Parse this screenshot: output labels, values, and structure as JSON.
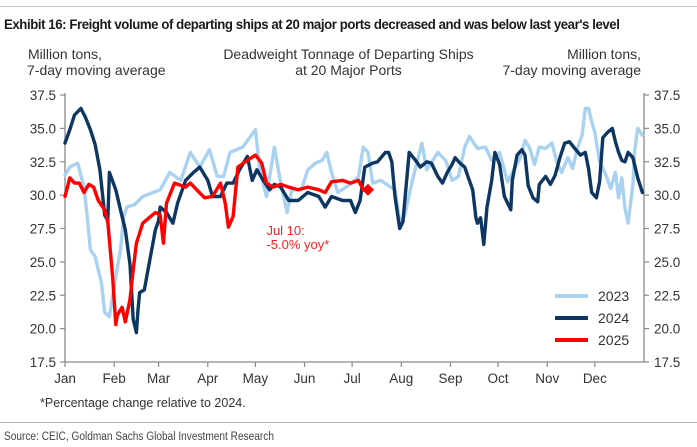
{
  "exhibit_title": "Exhibit 16: Freight volume of departing ships at 20 major ports decreased and was below last year's level",
  "footnote": "*Percentage change relative to 2024.",
  "source": "Source: CEIC, Goldman Sachs Global Investment Research",
  "chart_data": {
    "type": "line",
    "title": [
      "Deadweight Tonnage of Departing Ships",
      "at 20 Major Ports"
    ],
    "ylabel_left": [
      "Million tons,",
      "7-day moving average"
    ],
    "ylabel_right": [
      "Million tons,",
      "7-day moving average"
    ],
    "xlabel": "",
    "x_unit": "day of year (0 = Jan 1)",
    "x_range": [
      0,
      365
    ],
    "x_ticks": [
      {
        "label": "Jan",
        "day": 0
      },
      {
        "label": "Feb",
        "day": 31
      },
      {
        "label": "Mar",
        "day": 59
      },
      {
        "label": "Apr",
        "day": 90
      },
      {
        "label": "May",
        "day": 120
      },
      {
        "label": "Jun",
        "day": 151
      },
      {
        "label": "Jul",
        "day": 181
      },
      {
        "label": "Aug",
        "day": 212
      },
      {
        "label": "Sep",
        "day": 243
      },
      {
        "label": "Oct",
        "day": 273
      },
      {
        "label": "Nov",
        "day": 304
      },
      {
        "label": "Dec",
        "day": 334
      }
    ],
    "ylim": [
      17.5,
      37.5
    ],
    "y_ticks": [
      "17.5",
      "20.0",
      "22.5",
      "25.0",
      "27.5",
      "30.0",
      "32.5",
      "35.0",
      "37.5"
    ],
    "grid": false,
    "legend_position": "bottom-right",
    "series": [
      {
        "name": "2023",
        "color": "#a9d2f0",
        "points": [
          [
            0,
            31.5
          ],
          [
            3,
            32.1
          ],
          [
            8,
            32.4
          ],
          [
            12,
            30.6
          ],
          [
            14,
            28.4
          ],
          [
            16,
            25.9
          ],
          [
            19,
            25.4
          ],
          [
            23,
            23.4
          ],
          [
            25,
            21.2
          ],
          [
            28,
            20.9
          ],
          [
            32,
            23.9
          ],
          [
            35,
            25.9
          ],
          [
            37,
            28.4
          ],
          [
            39,
            29.1
          ],
          [
            44,
            29.3
          ],
          [
            49,
            29.9
          ],
          [
            60,
            30.4
          ],
          [
            66,
            31.7
          ],
          [
            73,
            31.1
          ],
          [
            79,
            33.2
          ],
          [
            85,
            32.1
          ],
          [
            91,
            33.4
          ],
          [
            96,
            31.4
          ],
          [
            100,
            31.4
          ],
          [
            104,
            33.2
          ],
          [
            112,
            33.6
          ],
          [
            117,
            34.4
          ],
          [
            120,
            34.9
          ],
          [
            123,
            31.7
          ],
          [
            127,
            29.9
          ],
          [
            132,
            33.6
          ],
          [
            136,
            30.9
          ],
          [
            140,
            28.7
          ],
          [
            143,
            30.4
          ],
          [
            149,
            30.4
          ],
          [
            153,
            31.9
          ],
          [
            158,
            32.4
          ],
          [
            162,
            32.6
          ],
          [
            165,
            33.2
          ],
          [
            168,
            31.7
          ],
          [
            172,
            30.2
          ],
          [
            181,
            30.9
          ],
          [
            185,
            31.4
          ],
          [
            188,
            33.6
          ],
          [
            191,
            33.2
          ],
          [
            194,
            30.9
          ],
          [
            199,
            31.1
          ],
          [
            208,
            30.4
          ],
          [
            211,
            28.1
          ],
          [
            214,
            28.4
          ],
          [
            219,
            31.1
          ],
          [
            225,
            33.9
          ],
          [
            228,
            31.9
          ],
          [
            235,
            33.2
          ],
          [
            240,
            32.6
          ],
          [
            244,
            31.1
          ],
          [
            248,
            31.4
          ],
          [
            252,
            33.6
          ],
          [
            255,
            34.4
          ],
          [
            260,
            33.5
          ],
          [
            265,
            33.6
          ],
          [
            269,
            32.6
          ],
          [
            274,
            33.2
          ],
          [
            279,
            31.0
          ],
          [
            282,
            31.7
          ],
          [
            287,
            32.8
          ],
          [
            290,
            34.1
          ],
          [
            293,
            33.5
          ],
          [
            296,
            32.3
          ],
          [
            299,
            33.6
          ],
          [
            303,
            33.5
          ],
          [
            307,
            33.9
          ],
          [
            310,
            32.5
          ],
          [
            313,
            31.7
          ],
          [
            317,
            32.8
          ],
          [
            320,
            32.0
          ],
          [
            323,
            33.5
          ],
          [
            326,
            34.5
          ],
          [
            328,
            36.5
          ],
          [
            330,
            36.5
          ],
          [
            332,
            35.5
          ],
          [
            334,
            34.7
          ],
          [
            337,
            32.5
          ],
          [
            341,
            31.5
          ],
          [
            344,
            30.5
          ],
          [
            347,
            31.7
          ],
          [
            349,
            29.8
          ],
          [
            351,
            31.3
          ],
          [
            353,
            29.0
          ],
          [
            355,
            27.9
          ],
          [
            358,
            30.8
          ],
          [
            359,
            33.2
          ],
          [
            361,
            35.0
          ],
          [
            364,
            34.5
          ]
        ]
      },
      {
        "name": "2024",
        "color": "#0d3761",
        "points": [
          [
            0,
            33.9
          ],
          [
            3,
            34.9
          ],
          [
            6,
            36.0
          ],
          [
            10,
            36.5
          ],
          [
            13,
            35.8
          ],
          [
            16,
            34.9
          ],
          [
            19,
            33.8
          ],
          [
            22,
            31.9
          ],
          [
            25,
            28.5
          ],
          [
            27,
            28.1
          ],
          [
            28,
            31.7
          ],
          [
            32,
            30.4
          ],
          [
            35,
            28.9
          ],
          [
            38,
            27.4
          ],
          [
            41,
            24.8
          ],
          [
            43,
            20.7
          ],
          [
            45,
            19.7
          ],
          [
            46,
            21.4
          ],
          [
            47,
            22.7
          ],
          [
            50,
            22.9
          ],
          [
            54,
            25.5
          ],
          [
            57,
            27.4
          ],
          [
            59,
            28.1
          ],
          [
            60,
            29.1
          ],
          [
            64,
            28.7
          ],
          [
            68,
            27.9
          ],
          [
            71,
            29.4
          ],
          [
            76,
            31.1
          ],
          [
            81,
            31.7
          ],
          [
            85,
            32.1
          ],
          [
            90,
            31.1
          ],
          [
            93,
            29.9
          ],
          [
            98,
            29.9
          ],
          [
            102,
            30.9
          ],
          [
            106,
            30.9
          ],
          [
            110,
            31.9
          ],
          [
            115,
            32.9
          ],
          [
            118,
            31.1
          ],
          [
            121,
            31.9
          ],
          [
            125,
            31.1
          ],
          [
            129,
            30.4
          ],
          [
            132,
            30.8
          ],
          [
            136,
            30.6
          ],
          [
            141,
            29.6
          ],
          [
            147,
            29.6
          ],
          [
            153,
            30.2
          ],
          [
            160,
            29.9
          ],
          [
            164,
            29.1
          ],
          [
            168,
            29.9
          ],
          [
            175,
            29.6
          ],
          [
            180,
            29.6
          ],
          [
            183,
            28.7
          ],
          [
            186,
            29.6
          ],
          [
            189,
            32.1
          ],
          [
            194,
            32.4
          ],
          [
            197,
            32.5
          ],
          [
            202,
            33.2
          ],
          [
            204,
            33.2
          ],
          [
            206,
            32.5
          ],
          [
            208,
            29.9
          ],
          [
            211,
            27.5
          ],
          [
            213,
            28.0
          ],
          [
            216,
            31.9
          ],
          [
            217,
            33.2
          ],
          [
            221,
            32.6
          ],
          [
            224,
            32.1
          ],
          [
            228,
            32.5
          ],
          [
            231,
            32.4
          ],
          [
            235,
            31.4
          ],
          [
            238,
            30.9
          ],
          [
            241,
            31.7
          ],
          [
            244,
            32.3
          ],
          [
            246,
            32.8
          ],
          [
            249,
            32.4
          ],
          [
            252,
            32.1
          ],
          [
            254,
            31.4
          ],
          [
            257,
            30.4
          ],
          [
            259,
            28.3
          ],
          [
            260,
            27.9
          ],
          [
            262,
            28.3
          ],
          [
            264,
            26.3
          ],
          [
            266,
            29.1
          ],
          [
            269,
            31.1
          ],
          [
            271,
            33.2
          ],
          [
            274,
            32.3
          ],
          [
            277,
            29.9
          ],
          [
            281,
            28.9
          ],
          [
            282,
            31.1
          ],
          [
            285,
            33.0
          ],
          [
            288,
            33.4
          ],
          [
            290,
            33.0
          ],
          [
            292,
            30.7
          ],
          [
            295,
            29.8
          ],
          [
            298,
            29.5
          ],
          [
            299,
            30.8
          ],
          [
            303,
            31.4
          ],
          [
            306,
            30.8
          ],
          [
            309,
            31.5
          ],
          [
            312,
            32.8
          ],
          [
            315,
            33.9
          ],
          [
            318,
            34.0
          ],
          [
            322,
            33.4
          ],
          [
            325,
            33.0
          ],
          [
            328,
            33.2
          ],
          [
            330,
            32.0
          ],
          [
            332,
            30.2
          ],
          [
            335,
            29.8
          ],
          [
            337,
            31.0
          ],
          [
            339,
            34.3
          ],
          [
            342,
            34.7
          ],
          [
            345,
            35.0
          ],
          [
            347,
            34.0
          ],
          [
            349,
            33.2
          ],
          [
            351,
            32.6
          ],
          [
            353,
            32.5
          ],
          [
            355,
            33.2
          ],
          [
            358,
            32.8
          ],
          [
            361,
            31.3
          ],
          [
            364,
            30.2
          ]
        ]
      },
      {
        "name": "2025",
        "color": "#ff0000",
        "points": [
          [
            0,
            29.9
          ],
          [
            3,
            31.3
          ],
          [
            6,
            30.9
          ],
          [
            9,
            30.9
          ],
          [
            12,
            30.2
          ],
          [
            15,
            30.8
          ],
          [
            18,
            30.6
          ],
          [
            21,
            29.6
          ],
          [
            25,
            28.9
          ],
          [
            27,
            28.0
          ],
          [
            30,
            23.9
          ],
          [
            32,
            20.3
          ],
          [
            33,
            21.0
          ],
          [
            36,
            21.6
          ],
          [
            38,
            20.5
          ],
          [
            41,
            22.2
          ],
          [
            43,
            24.4
          ],
          [
            45,
            26.4
          ],
          [
            49,
            27.9
          ],
          [
            53,
            28.3
          ],
          [
            57,
            28.7
          ],
          [
            60,
            28.5
          ],
          [
            62,
            26.4
          ],
          [
            64,
            29.4
          ],
          [
            69,
            30.9
          ],
          [
            76,
            30.6
          ],
          [
            79,
            30.9
          ],
          [
            83,
            30.4
          ],
          [
            88,
            29.8
          ],
          [
            93,
            29.9
          ],
          [
            98,
            30.9
          ],
          [
            101,
            29.4
          ],
          [
            103,
            27.6
          ],
          [
            106,
            28.4
          ],
          [
            109,
            32.1
          ],
          [
            115,
            32.6
          ],
          [
            120,
            33.0
          ],
          [
            124,
            32.4
          ],
          [
            127,
            30.9
          ],
          [
            131,
            30.6
          ],
          [
            136,
            30.8
          ],
          [
            141,
            30.6
          ],
          [
            147,
            30.4
          ],
          [
            153,
            30.6
          ],
          [
            160,
            30.4
          ],
          [
            164,
            30.2
          ],
          [
            168,
            31.0
          ],
          [
            175,
            31.1
          ],
          [
            180,
            30.9
          ],
          [
            185,
            31.1
          ],
          [
            188,
            30.4
          ],
          [
            191,
            30.4
          ]
        ]
      }
    ],
    "marker": {
      "series": "2025",
      "shape": "diamond",
      "day": 191,
      "value": 30.4
    },
    "annotations": [
      {
        "lines": [
          "Jul 10:",
          "-5.0% yoy*"
        ],
        "color": "#ff2020",
        "near_day": 127,
        "near_value": 27.0
      }
    ]
  }
}
